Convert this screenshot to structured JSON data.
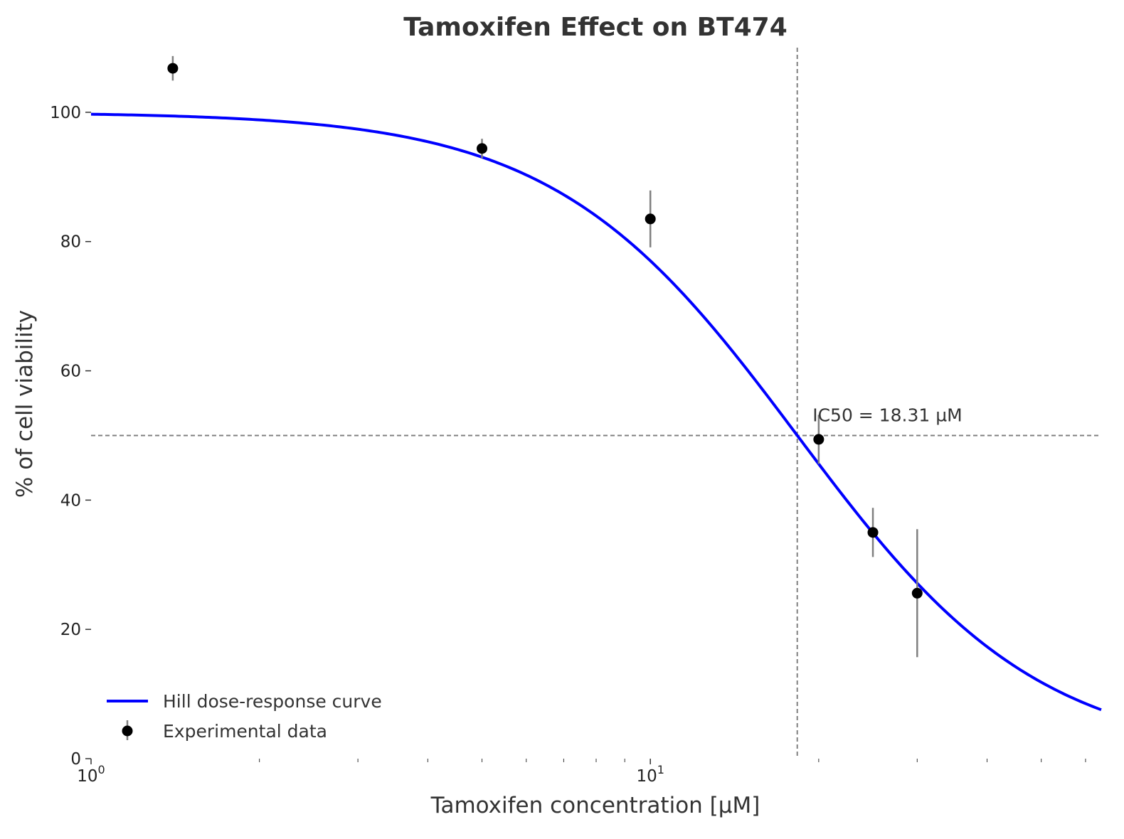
{
  "chart_data": {
    "type": "scatter",
    "title": "Tamoxifen Effect on BT474",
    "xlabel": "Tamoxifen concentration [µM]",
    "ylabel": "% of cell viability",
    "xscale": "log",
    "xlim": [
      1,
      64
    ],
    "ylim": [
      0,
      110
    ],
    "x_ticks": [
      {
        "value": 1,
        "base": "10",
        "exp": "0"
      },
      {
        "value": 10,
        "base": "10",
        "exp": "1"
      }
    ],
    "y_ticks": [
      0,
      20,
      40,
      60,
      80,
      100
    ],
    "grid": false,
    "legend_position": "lower-left",
    "series": [
      {
        "name": "Hill dose-response curve",
        "kind": "line",
        "color": "#0000ff",
        "model": {
          "top": 100,
          "bottom": 0,
          "ic50": 18.31,
          "hill": 2.0
        }
      },
      {
        "name": "Experimental data",
        "kind": "errorbar",
        "color": "#000000",
        "error_color": "#808080",
        "points": [
          {
            "x": 1.4,
            "y": 106.8,
            "err": 1.9
          },
          {
            "x": 5.0,
            "y": 94.4,
            "err": 1.5
          },
          {
            "x": 10.0,
            "y": 83.5,
            "err": 4.4
          },
          {
            "x": 20.0,
            "y": 49.4,
            "err": 3.8
          },
          {
            "x": 25.0,
            "y": 35.0,
            "err": 3.8
          },
          {
            "x": 30.0,
            "y": 25.6,
            "err": 9.9
          }
        ]
      }
    ],
    "reference_lines": {
      "x": 18.31,
      "y": 50,
      "color": "#808080",
      "style": "dashed"
    },
    "annotation": {
      "text": "IC50 = 18.31 µM",
      "x": 19.5,
      "y": 52.2
    }
  }
}
